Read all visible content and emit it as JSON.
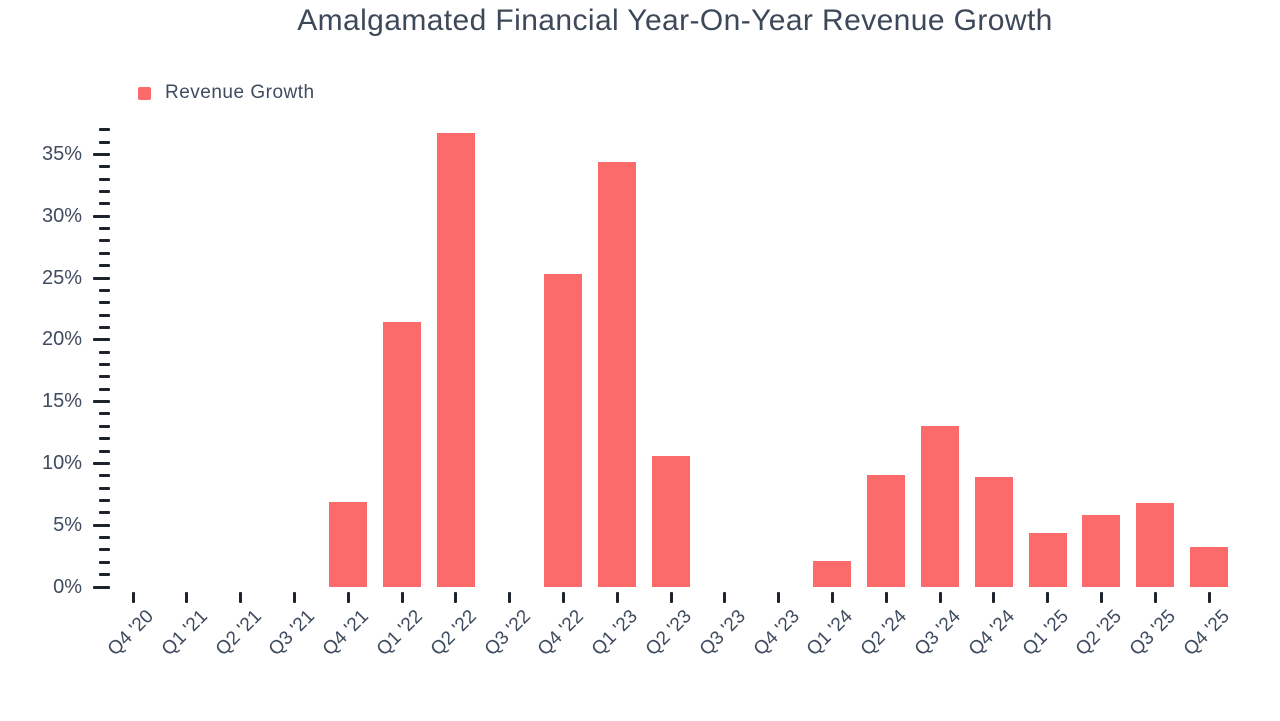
{
  "title": "Amalgamated Financial Year-On-Year Revenue Growth",
  "legend": {
    "label": "Revenue Growth"
  },
  "colors": {
    "bar": "#fc6b6b",
    "text": "#3f4b5f",
    "tick": "#1e242e",
    "background": "#ffffff"
  },
  "y_axis_labels": [
    "0%",
    "5%",
    "10%",
    "15%",
    "20%",
    "25%",
    "30%",
    "35%"
  ],
  "chart_data": {
    "type": "bar",
    "title": "Amalgamated Financial Year-On-Year Revenue Growth",
    "categories": [
      "Q4 '20",
      "Q1 '21",
      "Q2 '21",
      "Q3 '21",
      "Q4 '21",
      "Q1 '22",
      "Q2 '22",
      "Q3 '22",
      "Q4 '22",
      "Q1 '23",
      "Q2 '23",
      "Q3 '23",
      "Q4 '23",
      "Q1 '24",
      "Q2 '24",
      "Q3 '24",
      "Q4 '24",
      "Q1 '25",
      "Q2 '25",
      "Q3 '25",
      "Q4 '25"
    ],
    "values": [
      0,
      0,
      0,
      0,
      6.9,
      21.4,
      36.7,
      0,
      25.3,
      34.4,
      10.6,
      0,
      0,
      2.1,
      9.1,
      13.0,
      8.9,
      4.4,
      5.8,
      6.8,
      3.2
    ],
    "series_name": "Revenue Growth",
    "xlabel": "",
    "ylabel": "",
    "ylim": [
      0,
      37
    ],
    "ytick_major_interval": 5,
    "ytick_minor_interval": 1,
    "ytick_format": "percent",
    "grid": false,
    "legend_position": "top-left"
  }
}
